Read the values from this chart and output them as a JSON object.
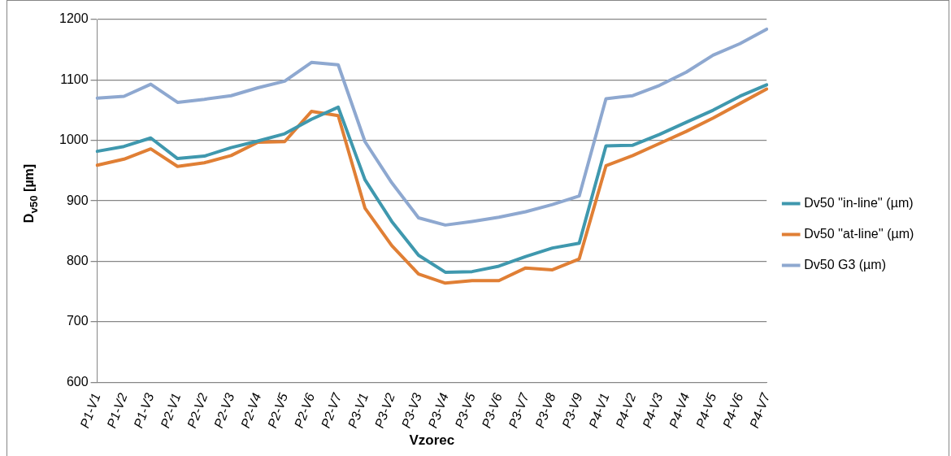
{
  "chart_data": {
    "type": "line",
    "xlabel": "Vzorec",
    "ylabel": "D$_{v50}$ [µm]",
    "categories": [
      "P1-V1",
      "P1-V2",
      "P1-V3",
      "P2-V1",
      "P2-V2",
      "P2-V3",
      "P2-V4",
      "P2-V5",
      "P2-V6",
      "P2-V7",
      "P3-V1",
      "P3-V2",
      "P3-V3",
      "P3-V4",
      "P3-V5",
      "P3-V6",
      "P3-V7",
      "P3-V8",
      "P3-V9",
      "P4-V1",
      "P4-V2",
      "P4-V3",
      "P4-V4",
      "P4-V5",
      "P4-V6",
      "P4-V7"
    ],
    "series": [
      {
        "name": "Dv50 ''in-line'' (µm)",
        "color": "#3f98ae",
        "values": [
          982,
          990,
          1004,
          970,
          974,
          988,
          999,
          1011,
          1035,
          1055,
          935,
          866,
          810,
          782,
          783,
          792,
          808,
          822,
          830,
          991,
          992,
          1010,
          1030,
          1050,
          1073,
          1092
        ]
      },
      {
        "name": "Dv50 ''at-line'' (µm)",
        "color": "#e07f35",
        "values": [
          959,
          969,
          986,
          957,
          963,
          975,
          997,
          998,
          1048,
          1041,
          888,
          826,
          779,
          764,
          768,
          768,
          789,
          786,
          804,
          958,
          975,
          995,
          1015,
          1037,
          1061,
          1085
        ]
      },
      {
        "name": "Dv50 G3 (µm)",
        "color": "#8ea8d0",
        "values": [
          1070,
          1073,
          1093,
          1063,
          1068,
          1074,
          1087,
          1098,
          1129,
          1125,
          998,
          930,
          872,
          860,
          866,
          873,
          882,
          894,
          908,
          1069,
          1074,
          1091,
          1113,
          1141,
          1160,
          1184
        ]
      }
    ],
    "ylim": [
      600,
      1200
    ],
    "yticks": [
      600,
      700,
      800,
      900,
      1000,
      1100,
      1200
    ],
    "grid": "y",
    "legend": "right",
    "marker": "none",
    "line_style": "solid"
  }
}
